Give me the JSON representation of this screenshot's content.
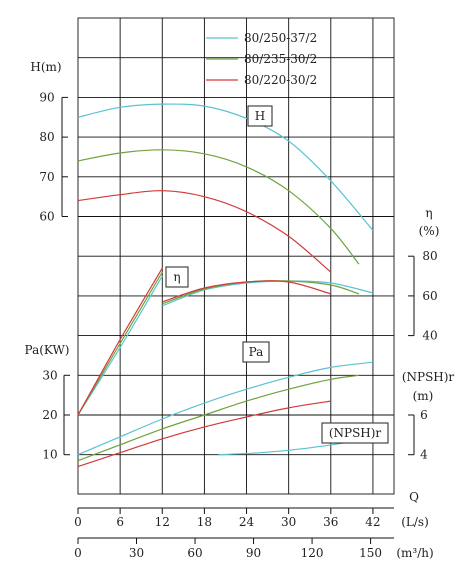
{
  "chart_data": {
    "type": "line",
    "legend": {
      "placement": "top-right",
      "entries": [
        {
          "name": "80/250-37/2",
          "color": "#5bc3cf"
        },
        {
          "name": "80/235-30/2",
          "color": "#6ea33d"
        },
        {
          "name": "80/220-30/2",
          "color": "#d43a3a"
        }
      ]
    },
    "grid": true,
    "x_axis": {
      "label": "Q",
      "unit": "(L/s)",
      "range": [
        0,
        45
      ],
      "ticks": [
        "0",
        "6",
        "12",
        "18",
        "24",
        "30",
        "36",
        "42"
      ]
    },
    "x2_axis": {
      "unit": "(m³/h)",
      "ticks": [
        "0",
        "30",
        "60",
        "90",
        "120",
        "150"
      ]
    },
    "panels": {
      "H": {
        "label": "H(m)",
        "box_label": "H",
        "range": [
          55,
          95
        ],
        "ticks": [
          "60",
          "70",
          "80",
          "90"
        ],
        "series": [
          {
            "name": "80/250-37/2",
            "x": [
              0,
              6,
              12,
              18,
              24,
              30,
              36,
              42
            ],
            "y": [
              85,
              87.5,
              88.3,
              87.8,
              84.7,
              79,
              69,
              56.5
            ]
          },
          {
            "name": "80/235-30/2",
            "x": [
              0,
              6,
              12,
              18,
              24,
              30,
              36,
              40
            ],
            "y": [
              74,
              76,
              76.8,
              75.8,
              72.5,
              66.5,
              57,
              48
            ]
          },
          {
            "name": "80/220-30/2",
            "x": [
              0,
              6,
              12,
              18,
              24,
              30,
              36
            ],
            "y": [
              64,
              65.5,
              66.5,
              65,
              61.2,
              55,
              46
            ]
          }
        ]
      },
      "eta": {
        "label": "η",
        "unit": "(%)",
        "box_label": "η",
        "range": [
          40,
          80
        ],
        "ticks": [
          "40",
          "60",
          "80"
        ],
        "series": [
          {
            "name": "80/250-37/2",
            "x": [
              12,
              18,
              24,
              30,
              36,
              42
            ],
            "y": [
              55,
              63,
              66.5,
              67.5,
              66.5,
              61.5
            ]
          },
          {
            "name": "80/235-30/2",
            "x": [
              12,
              18,
              24,
              30,
              36,
              40
            ],
            "y": [
              56,
              63.5,
              67,
              67.5,
              65.5,
              61
            ]
          },
          {
            "name": "80/220-30/2",
            "x": [
              12,
              18,
              24,
              30,
              36
            ],
            "y": [
              57,
              64,
              67,
              67,
              61
            ]
          }
        ]
      },
      "Pa": {
        "label": "Pa(KW)",
        "box_label": "Pa",
        "range": [
          5,
          35
        ],
        "ticks": [
          "10",
          "20",
          "30"
        ],
        "series": [
          {
            "name": "80/250-37/2",
            "x": [
              0,
              6,
              12,
              18,
              24,
              30,
              36,
              42
            ],
            "y": [
              10,
              14.5,
              19,
              23,
              26.5,
              29.5,
              32,
              33.3
            ]
          },
          {
            "name": "80/235-30/2",
            "x": [
              0,
              6,
              12,
              18,
              24,
              30,
              36,
              40
            ],
            "y": [
              8.5,
              12.5,
              16.5,
              20,
              23.5,
              26.5,
              29,
              30
            ]
          },
          {
            "name": "80/220-30/2",
            "x": [
              0,
              6,
              12,
              18,
              24,
              30,
              36
            ],
            "y": [
              7,
              10.5,
              14,
              17,
              19.5,
              21.8,
              23.5
            ]
          }
        ]
      },
      "NPSH": {
        "label": "(NPSH)r",
        "unit": "(m)",
        "box_label": "(NPSH)r",
        "range": [
          3,
          7
        ],
        "ticks": [
          "4",
          "6"
        ],
        "series": [
          {
            "name": "80/250-37/2",
            "x": [
              20,
              26,
              32,
              38,
              42
            ],
            "y": [
              4,
              4.1,
              4.3,
              4.6,
              4.85
            ]
          }
        ]
      },
      "eta_start": {
        "series": [
          {
            "name": "80/250-37/2",
            "x": [
              0,
              6,
              12
            ],
            "y": [
              20,
              37,
              55
            ]
          },
          {
            "name": "80/235-30/2",
            "x": [
              0,
              6,
              12
            ],
            "y": [
              20,
              38,
              56
            ]
          },
          {
            "name": "80/220-30/2",
            "x": [
              0,
              6,
              12
            ],
            "y": [
              20,
              39,
              57
            ]
          }
        ]
      }
    }
  }
}
